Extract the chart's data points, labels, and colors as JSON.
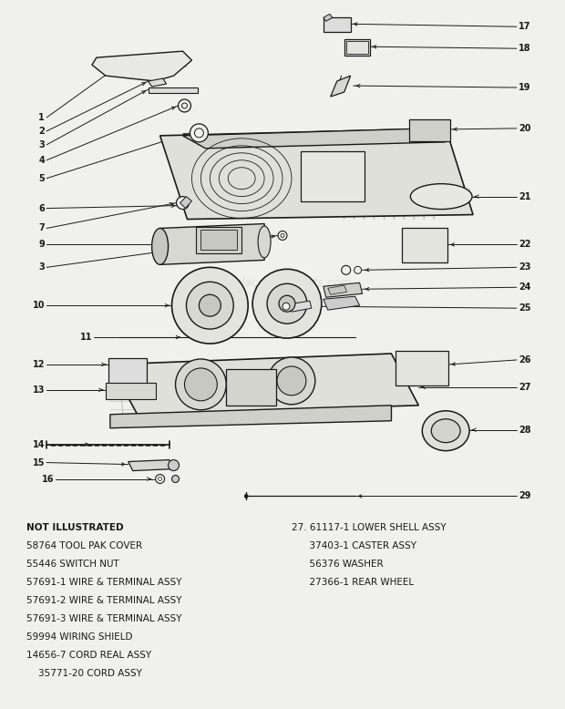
{
  "bg_color": "#f0f0ec",
  "fg_color": "#1a1a1a",
  "watermark": "eReplacementParts.com",
  "not_illustrated": [
    "NOT ILLUSTRATED",
    "58764 TOOL PAK COVER",
    "55446 SWITCH NUT",
    "57691-1 WIRE & TERMINAL ASSY",
    "57691-2 WIRE & TERMINAL ASSY",
    "57691-3 WIRE & TERMINAL ASSY",
    "59994 WIRING SHIELD",
    "14656-7 CORD REAL ASSY",
    "    35771-20 CORD ASSY"
  ],
  "parts_list": [
    "27. 61117-1 LOWER SHELL ASSY",
    "      37403-1 CASTER ASSY",
    "      56376 WASHER",
    "      27366-1 REAR WHEEL"
  ]
}
